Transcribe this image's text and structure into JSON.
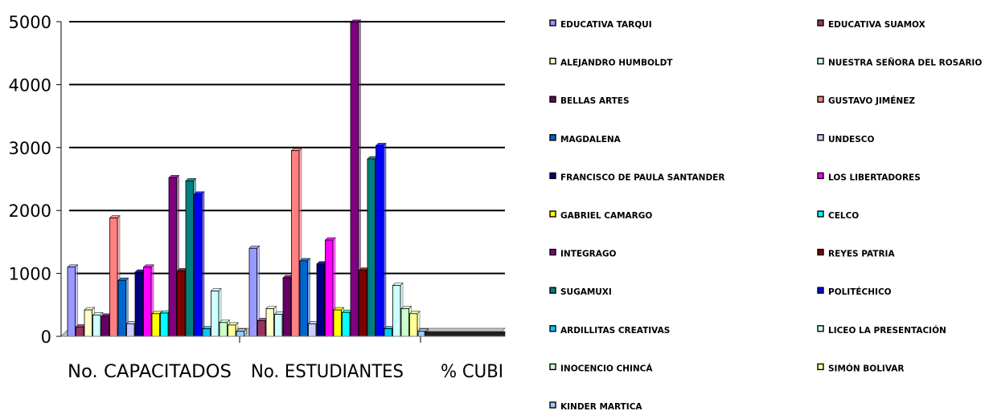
{
  "chart_data": {
    "type": "bar",
    "title": "",
    "xlabel": "",
    "ylabel": "",
    "ylim": [
      0,
      5000
    ],
    "yticks": [
      "0",
      "1000",
      "2000",
      "3000",
      "4000",
      "5000"
    ],
    "grid": true,
    "legend_position": "right",
    "categories": [
      "No. CAPACITADOS",
      "No. ESTUDIANTES",
      "% CUBI"
    ],
    "series": [
      {
        "name": "EDUCATIVA TARQUI",
        "color": "#9999ff",
        "values": [
          1100,
          1400,
          0
        ]
      },
      {
        "name": "EDUCATIVA SUAMOX",
        "color": "#993366",
        "values": [
          150,
          250,
          0
        ]
      },
      {
        "name": "ALEJANDRO HUMBOLDT",
        "color": "#ffffcc",
        "values": [
          420,
          440,
          0
        ]
      },
      {
        "name": "NUESTRA SEÑORA DEL ROSARIO",
        "color": "#ccffff",
        "values": [
          340,
          350,
          0
        ]
      },
      {
        "name": "BELLAS ARTES",
        "color": "#660066",
        "values": [
          320,
          930,
          0
        ]
      },
      {
        "name": "GUSTAVO JIMÉNEZ",
        "color": "#ff8080",
        "values": [
          1880,
          2950,
          0
        ]
      },
      {
        "name": "MAGDALENA",
        "color": "#0066cc",
        "values": [
          890,
          1200,
          0
        ]
      },
      {
        "name": "UNDESCO",
        "color": "#ccccff",
        "values": [
          200,
          200,
          0
        ]
      },
      {
        "name": "FRANCISCO DE PAULA SANTANDER",
        "color": "#000080",
        "values": [
          1020,
          1150,
          0
        ]
      },
      {
        "name": "LOS LIBERTADORES",
        "color": "#ff00ff",
        "values": [
          1100,
          1530,
          0
        ]
      },
      {
        "name": "GABRIEL CAMARGO",
        "color": "#ffff00",
        "values": [
          360,
          420,
          0
        ]
      },
      {
        "name": "CELCO",
        "color": "#00ffff",
        "values": [
          370,
          380,
          0
        ]
      },
      {
        "name": "INTEGRAGO",
        "color": "#800080",
        "values": [
          2520,
          4990,
          0
        ]
      },
      {
        "name": "REYES PATRIA",
        "color": "#800000",
        "values": [
          1040,
          1050,
          0
        ]
      },
      {
        "name": "SUGAMUXI",
        "color": "#008080",
        "values": [
          2470,
          2820,
          0
        ]
      },
      {
        "name": "POLITÉCHICO",
        "color": "#0000ff",
        "values": [
          2260,
          3030,
          0
        ]
      },
      {
        "name": "ARDILLITAS CREATIVAS",
        "color": "#00ccff",
        "values": [
          120,
          120,
          0
        ]
      },
      {
        "name": "LICEO LA PRESENTACIÓN",
        "color": "#ccffff",
        "values": [
          720,
          810,
          0
        ]
      },
      {
        "name": "INOCENCIO CHINCÁ",
        "color": "#ccffcc",
        "values": [
          220,
          440,
          0
        ]
      },
      {
        "name": "SIMÓN BOLIVAR",
        "color": "#ffff99",
        "values": [
          180,
          360,
          0
        ]
      },
      {
        "name": "KINDER MARTICA",
        "color": "#99ccff",
        "values": [
          80,
          80,
          0
        ]
      }
    ]
  }
}
